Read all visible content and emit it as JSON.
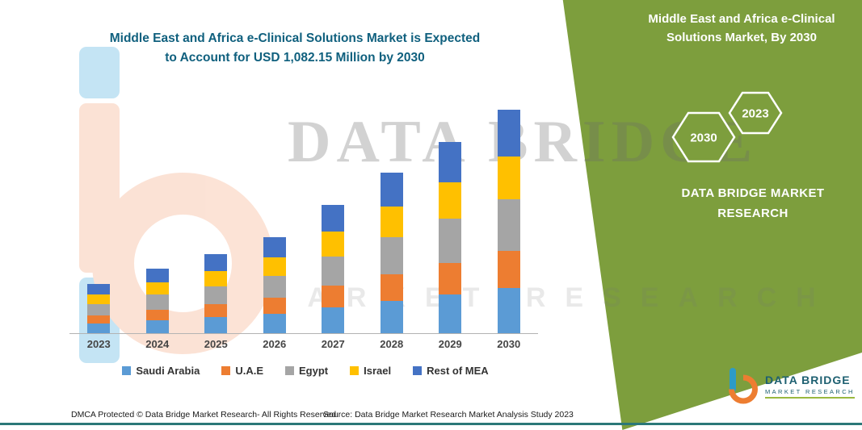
{
  "header": {
    "title_line1": "Middle East and Africa e-Clinical Solutions Market is Expected",
    "title_line2": "to Account for USD 1,082.15 Million by 2030",
    "title_color": "#10607e"
  },
  "side_panel": {
    "bg_color": "#7d9e3d",
    "title_line1": "Middle East and Africa e-Clinical",
    "title_line2": "Solutions Market, By 2030",
    "hexagons": [
      {
        "label": "2030"
      },
      {
        "label": "2023"
      }
    ],
    "brand_line1": "DATA BRIDGE MARKET",
    "brand_line2": "RESEARCH"
  },
  "watermark": {
    "line1": "DATA BRIDGE",
    "line2": "MARKET RESEARCH"
  },
  "chart_data": {
    "type": "bar",
    "stacked": true,
    "unit": "USD Million",
    "stated_total_2030": 1082.15,
    "categories": [
      "2023",
      "2024",
      "2025",
      "2026",
      "2027",
      "2028",
      "2029",
      "2030"
    ],
    "series": [
      {
        "name": "Saudi Arabia",
        "color": "#5B9BD5",
        "values": [
          48,
          63,
          77,
          94,
          125,
          156,
          186,
          218
        ]
      },
      {
        "name": "U.A.E",
        "color": "#ED7D31",
        "values": [
          40,
          52,
          64,
          78,
          104,
          130,
          155,
          181
        ]
      },
      {
        "name": "Egypt",
        "color": "#A5A5A5",
        "values": [
          54,
          71,
          87,
          106,
          142,
          178,
          212,
          248
        ]
      },
      {
        "name": "Israel",
        "color": "#FFC000",
        "values": [
          46,
          60,
          74,
          90,
          120,
          150,
          179,
          210
        ]
      },
      {
        "name": "Rest of MEA",
        "color": "#4472C4",
        "values": [
          50,
          66,
          81,
          97,
          130,
          163,
          194,
          225.15
        ]
      }
    ],
    "totals": [
      238,
      312,
      383,
      465,
      621,
      777,
      926,
      1082.15
    ],
    "ylim": [
      0,
      1100
    ],
    "grid": false,
    "y_axis_visible": false,
    "legend_position": "bottom"
  },
  "footer": {
    "dmca": "DMCA Protected © Data Bridge Market Research- All Rights Reserved.",
    "source": "Source: Data Bridge Market Research Market Analysis Study 2023",
    "rule_color": "#2b7878"
  },
  "logo": {
    "name_line1": "DATA BRIDGE",
    "name_line2": "MARKET RESEARCH"
  }
}
